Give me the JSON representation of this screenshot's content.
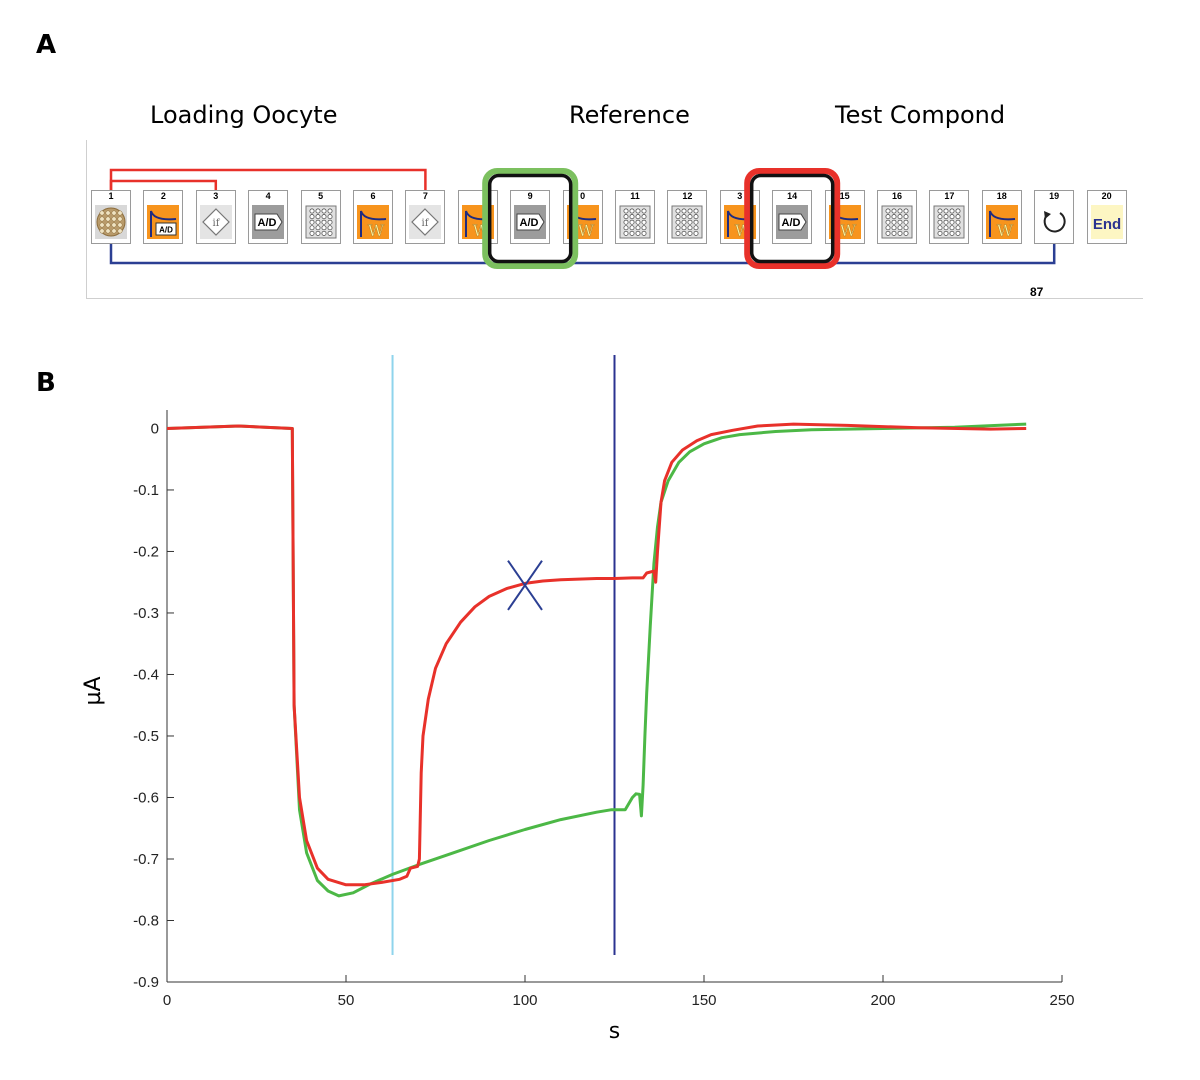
{
  "panel_a": {
    "letter": "A",
    "group_labels": {
      "loading": "Loading Oocyte",
      "reference": "Reference",
      "test": "Test Compond"
    },
    "steps": [
      {
        "num": "1",
        "kind": "plate-load"
      },
      {
        "num": "2",
        "kind": "record",
        "text": "A/D"
      },
      {
        "num": "3",
        "kind": "if",
        "text": "if"
      },
      {
        "num": "4",
        "kind": "ad",
        "text": "A/D"
      },
      {
        "num": "5",
        "kind": "wells"
      },
      {
        "num": "6",
        "kind": "wash",
        "text": "W"
      },
      {
        "num": "7",
        "kind": "if",
        "text": "if"
      },
      {
        "num": "",
        "kind": "wash",
        "text": "W"
      },
      {
        "num": "9",
        "kind": "ad",
        "text": "A/D"
      },
      {
        "num": "0",
        "kind": "wash",
        "text": "W"
      },
      {
        "num": "11",
        "kind": "wells"
      },
      {
        "num": "12",
        "kind": "wells"
      },
      {
        "num": "3",
        "kind": "wash",
        "text": "W"
      },
      {
        "num": "14",
        "kind": "ad",
        "text": "A/D"
      },
      {
        "num": "15",
        "kind": "wash",
        "text": "W"
      },
      {
        "num": "16",
        "kind": "wells"
      },
      {
        "num": "17",
        "kind": "wells"
      },
      {
        "num": "18",
        "kind": "wash",
        "text": "W"
      },
      {
        "num": "19",
        "kind": "loop"
      },
      {
        "num": "20",
        "kind": "end",
        "text": "End"
      }
    ],
    "repeat_count": "87",
    "colors": {
      "red_bracket": "#e8312a",
      "blue_loop": "#2b3f93",
      "green_box": "#7cc05f",
      "orange_step": "#f7941d",
      "end_fill": "#fdf6c3",
      "end_text": "#2b3390"
    }
  },
  "panel_b": {
    "letter": "B"
  },
  "chart_data": {
    "type": "line",
    "xlabel": "s",
    "ylabel": "µA",
    "xlim": [
      0,
      250
    ],
    "ylim": [
      -0.9,
      0.03
    ],
    "xticks": [
      0,
      50,
      100,
      150,
      200,
      250
    ],
    "yticks": [
      0,
      -0.1,
      -0.2,
      -0.3,
      -0.4,
      -0.5,
      -0.6,
      -0.7,
      -0.8,
      -0.9
    ],
    "xtick_labels": [
      "0",
      "50",
      "100",
      "150",
      "200",
      "250"
    ],
    "ytick_labels": [
      "0",
      "-0.1",
      "-0.2",
      "-0.3",
      "-0.4",
      "-0.5",
      "-0.6",
      "-0.7",
      "-0.8",
      "-0.9"
    ],
    "grid": false,
    "series": [
      {
        "color": "#4cb846",
        "x": [
          0,
          20,
          35,
          35.5,
          37,
          39,
          42,
          45,
          48,
          52,
          57,
          63,
          70,
          80,
          90,
          100,
          110,
          120,
          124,
          126,
          128,
          130,
          131,
          132,
          132.5,
          133,
          133.5,
          134,
          135,
          136,
          137,
          138,
          140,
          143,
          146,
          150,
          155,
          160,
          170,
          180,
          200,
          220,
          240
        ],
        "y": [
          0,
          0.004,
          0,
          -0.45,
          -0.62,
          -0.69,
          -0.735,
          -0.752,
          -0.76,
          -0.755,
          -0.74,
          -0.725,
          -0.71,
          -0.69,
          -0.67,
          -0.652,
          -0.636,
          -0.624,
          -0.62,
          -0.62,
          -0.62,
          -0.6,
          -0.594,
          -0.595,
          -0.63,
          -0.58,
          -0.5,
          -0.43,
          -0.32,
          -0.22,
          -0.16,
          -0.12,
          -0.085,
          -0.055,
          -0.038,
          -0.025,
          -0.015,
          -0.01,
          -0.005,
          -0.002,
          0,
          0.002,
          0.007
        ]
      },
      {
        "color": "#e8312a",
        "x": [
          0,
          20,
          35,
          35.5,
          37,
          39,
          42,
          45,
          50,
          55,
          60,
          65,
          67,
          68,
          70,
          70.5,
          71,
          71.5,
          73,
          75,
          78,
          82,
          86,
          90,
          95,
          100,
          105,
          110,
          115,
          120,
          125,
          130,
          133,
          134,
          136,
          136.5,
          137,
          138,
          139,
          141,
          144,
          148,
          152,
          158,
          165,
          175,
          190,
          210,
          230,
          240
        ],
        "y": [
          0,
          0.004,
          0,
          -0.45,
          -0.6,
          -0.67,
          -0.715,
          -0.733,
          -0.742,
          -0.742,
          -0.738,
          -0.733,
          -0.728,
          -0.715,
          -0.712,
          -0.7,
          -0.56,
          -0.5,
          -0.44,
          -0.39,
          -0.35,
          -0.315,
          -0.29,
          -0.273,
          -0.26,
          -0.252,
          -0.248,
          -0.246,
          -0.245,
          -0.244,
          -0.244,
          -0.243,
          -0.243,
          -0.235,
          -0.232,
          -0.25,
          -0.2,
          -0.12,
          -0.085,
          -0.055,
          -0.035,
          -0.02,
          -0.01,
          -0.003,
          0.004,
          0.007,
          0.005,
          0.001,
          -0.001,
          0
        ]
      }
    ],
    "vlines": [
      {
        "x": 63,
        "color": "#8fd4ec"
      },
      {
        "x": 125,
        "color": "#2b3390"
      }
    ],
    "markers": [
      {
        "x": 100,
        "y": -0.255,
        "symbol": "x",
        "color": "#2b3f93"
      }
    ]
  }
}
